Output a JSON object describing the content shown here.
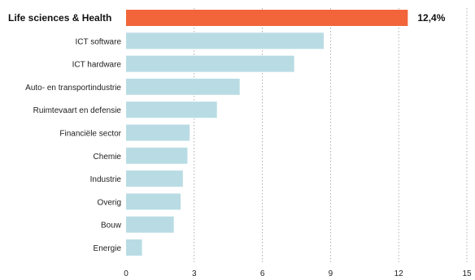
{
  "chart_data": {
    "type": "bar",
    "orientation": "horizontal",
    "categories": [
      "Life sciences & Health",
      "ICT software",
      "ICT hardware",
      "Auto- en transportindustrie",
      "Ruimtevaart en defensie",
      "Financiële sector",
      "Chemie",
      "Industrie",
      "Overig",
      "Bouw",
      "Energie"
    ],
    "values": [
      12.4,
      8.7,
      7.4,
      5.0,
      4.0,
      2.8,
      2.7,
      2.5,
      2.4,
      2.1,
      0.7
    ],
    "highlight_index": 0,
    "data_labels": [
      "12,4%"
    ],
    "xlim": [
      0,
      15
    ],
    "xticks": [
      0,
      3,
      6,
      9,
      12,
      15
    ],
    "xtick_labels": [
      "0",
      "3",
      "6",
      "9",
      "12",
      "15"
    ],
    "grid": "vertical dotted",
    "colors": {
      "bar": "#b9dce4",
      "highlight": "#f2643a"
    }
  }
}
